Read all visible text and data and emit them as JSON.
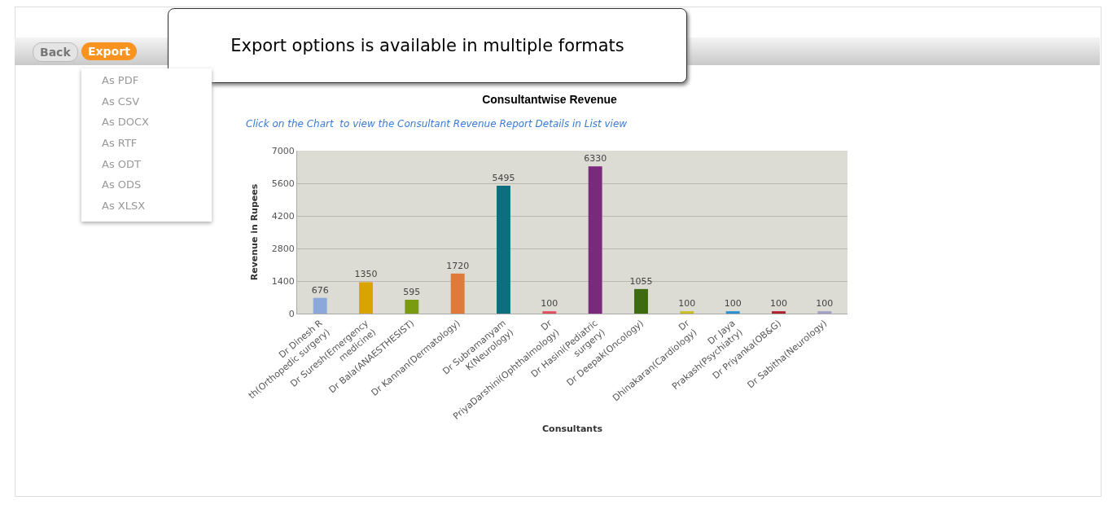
{
  "chart_data": {
    "type": "bar",
    "title": "Consultantwise Revenue",
    "subtitle": "Click on the Chart  to view the Consultant Revenue Report Details in List view",
    "xlabel": "Consultants",
    "ylabel": "Revenue in Rupees",
    "categories": [
      "Dr Dinesh R th(Orthopedic surgery)",
      "Dr Suresh(Emergency medicine)",
      "Dr Bala(ANAESTHESIST)",
      "Dr Kannan(Dermatology)",
      "Dr Subramanyam K(Neurology)",
      "Dr PriyaDarshini(Ophthalmology)",
      "Dr Hasini(Pediatric surgery)",
      "Dr Deepak(Oncology)",
      "Dr Dhinakaran(Cardiology)",
      "Dr Jaya Prakash(Psychiatry)",
      "Dr Priyanka(OB&G)",
      "Dr Sabitha(Neurology)"
    ],
    "values": [
      676,
      1350,
      595,
      1720,
      5495,
      100,
      6330,
      1055,
      100,
      100,
      100,
      100
    ],
    "colors": [
      "#8aa8d8",
      "#d9a400",
      "#7a9a10",
      "#e07a3a",
      "#0e6e80",
      "#e05060",
      "#7a2a7a",
      "#3e6a10",
      "#c8c020",
      "#2a90d0",
      "#b02030",
      "#a0a0c8"
    ],
    "ylim": [
      0,
      7000
    ],
    "yticks": [
      0,
      1400,
      2800,
      4200,
      5600,
      7000
    ],
    "grid": "y",
    "data_labels": true,
    "annotations": [
      "Export options is available in multiple formats",
      "Back",
      "Export",
      "As PDF",
      "As CSV",
      "As DOCX",
      "As RTF",
      "As ODT",
      "As ODS",
      "As XLSX"
    ]
  }
}
